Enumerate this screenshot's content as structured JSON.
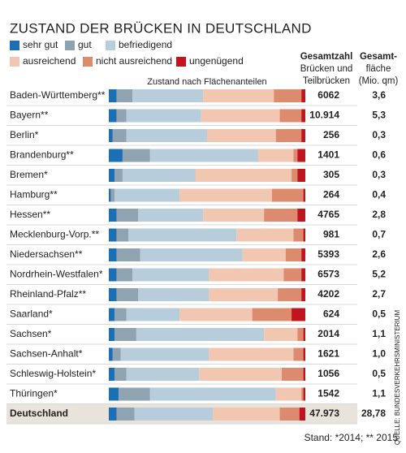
{
  "chart_data": {
    "type": "bar",
    "orientation": "horizontal",
    "stacked": true,
    "title": "ZUSTAND DER BRÜCKEN IN DEUTSCHLAND",
    "axis_label": "Zustand nach Flächenanteilen",
    "categories": [
      "Baden-Württemberg**",
      "Bayern**",
      "Berlin*",
      "Brandenburg**",
      "Bremen*",
      "Hamburg**",
      "Hessen**",
      "Mecklenburg-Vorp.**",
      "Niedersachsen**",
      "Nordrhein-Westfalen*",
      "Rheinland-Pfalz**",
      "Saarland*",
      "Sachsen*",
      "Sachsen-Anhalt*",
      "Schleswig-Holstein*",
      "Thüringen*",
      "Deutschland"
    ],
    "xlim": [
      0,
      100
    ],
    "series": [
      {
        "name": "sehr gut",
        "color": "#1a6fb5",
        "values": [
          4,
          4,
          2,
          7,
          3,
          1,
          4,
          4,
          4,
          4,
          4,
          3,
          3,
          2,
          3,
          5,
          4
        ]
      },
      {
        "name": "gut",
        "color": "#8fa3b0",
        "values": [
          8,
          5,
          7,
          14,
          4,
          2,
          11,
          6,
          12,
          8,
          11,
          6,
          11,
          4,
          6,
          16,
          9
        ]
      },
      {
        "name": "befriedigend",
        "color": "#b7cddb",
        "values": [
          36,
          38,
          41,
          55,
          37,
          33,
          33,
          55,
          52,
          39,
          36,
          27,
          65,
          45,
          37,
          64,
          40
        ]
      },
      {
        "name": "ausreichend",
        "color": "#f2c7b1",
        "values": [
          36,
          40,
          35,
          18,
          49,
          47,
          31,
          29,
          22,
          38,
          35,
          37,
          17,
          43,
          42,
          13,
          34
        ]
      },
      {
        "name": "nicht ausreichend",
        "color": "#dd8b6e",
        "values": [
          14,
          11,
          13,
          2,
          3,
          16,
          17,
          5,
          8,
          9,
          12,
          20,
          3,
          5,
          11,
          1,
          10
        ]
      },
      {
        "name": "ungenügend",
        "color": "#c0141e",
        "values": [
          2,
          2,
          2,
          4,
          4,
          1,
          4,
          1,
          2,
          2,
          2,
          7,
          1,
          1,
          1,
          1,
          3
        ]
      }
    ],
    "columns": [
      {
        "header": [
          "Gesamtzahl",
          "Brücken und",
          "Teilbrücken"
        ],
        "values": [
          "6062",
          "10.914",
          "256",
          "1401",
          "305",
          "264",
          "4765",
          "981",
          "5393",
          "6573",
          "4202",
          "624",
          "2014",
          "1621",
          "1056",
          "1542",
          "47.973"
        ]
      },
      {
        "header": [
          "Gesamt-",
          "fläche",
          "(Mio. qm)"
        ],
        "values": [
          "3,6",
          "5,3",
          "0,3",
          "0,6",
          "0,3",
          "0,4",
          "2,8",
          "0,7",
          "2,6",
          "5,2",
          "2,7",
          "0,5",
          "1,1",
          "1,0",
          "0,5",
          "1,1",
          "28,78"
        ]
      }
    ],
    "source": "QUELLE: BUNDESVERKEHRSMINISTERIUM",
    "footnote": "Stand: *2014; ** 2015"
  }
}
